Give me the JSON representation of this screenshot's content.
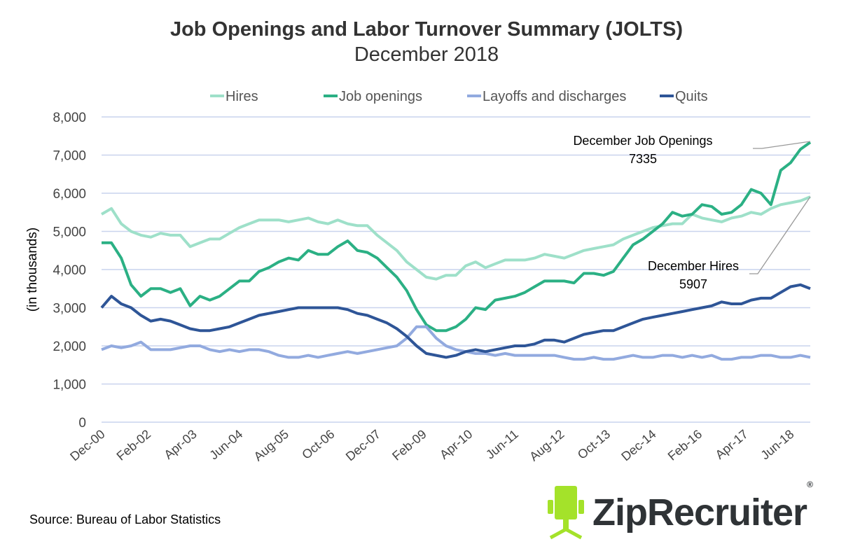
{
  "chart_data": {
    "type": "line",
    "title": "Job Openings and Labor Turnover Summary (JOLTS)",
    "subtitle": "December 2018",
    "ylabel": "(in thousands)",
    "xlabel": "",
    "ylim": [
      0,
      8000
    ],
    "yticks": [
      "0",
      "1,000",
      "2,000",
      "3,000",
      "4,000",
      "5,000",
      "6,000",
      "7,000",
      "8,000"
    ],
    "xticks": [
      "Dec-00",
      "Feb-02",
      "Apr-03",
      "Jun-04",
      "Aug-05",
      "Oct-06",
      "Dec-07",
      "Feb-09",
      "Apr-10",
      "Jun-11",
      "Aug-12",
      "Oct-13",
      "Dec-14",
      "Feb-16",
      "Apr-17",
      "Jun-18"
    ],
    "grid": true,
    "legend_position": "top",
    "x": [
      "2000-12",
      "2001-03",
      "2001-06",
      "2001-09",
      "2001-12",
      "2002-03",
      "2002-06",
      "2002-09",
      "2002-12",
      "2003-03",
      "2003-06",
      "2003-09",
      "2003-12",
      "2004-03",
      "2004-06",
      "2004-09",
      "2004-12",
      "2005-03",
      "2005-06",
      "2005-09",
      "2005-12",
      "2006-03",
      "2006-06",
      "2006-09",
      "2006-12",
      "2007-03",
      "2007-06",
      "2007-09",
      "2007-12",
      "2008-03",
      "2008-06",
      "2008-09",
      "2008-12",
      "2009-03",
      "2009-06",
      "2009-09",
      "2009-12",
      "2010-03",
      "2010-06",
      "2010-09",
      "2010-12",
      "2011-03",
      "2011-06",
      "2011-09",
      "2011-12",
      "2012-03",
      "2012-06",
      "2012-09",
      "2012-12",
      "2013-03",
      "2013-06",
      "2013-09",
      "2013-12",
      "2014-03",
      "2014-06",
      "2014-09",
      "2014-12",
      "2015-03",
      "2015-06",
      "2015-09",
      "2015-12",
      "2016-03",
      "2016-06",
      "2016-09",
      "2016-12",
      "2017-03",
      "2017-06",
      "2017-09",
      "2017-12",
      "2018-03",
      "2018-06",
      "2018-09",
      "2018-12"
    ],
    "series": [
      {
        "name": "Hires",
        "color": "#9ee0c9",
        "values": [
          5450,
          5600,
          5200,
          5000,
          4900,
          4850,
          4950,
          4900,
          4900,
          4600,
          4700,
          4800,
          4800,
          4950,
          5100,
          5200,
          5300,
          5300,
          5300,
          5250,
          5300,
          5350,
          5250,
          5200,
          5300,
          5200,
          5150,
          5150,
          4900,
          4700,
          4500,
          4200,
          4000,
          3800,
          3750,
          3850,
          3850,
          4100,
          4200,
          4050,
          4150,
          4250,
          4250,
          4250,
          4300,
          4400,
          4350,
          4300,
          4400,
          4500,
          4550,
          4600,
          4650,
          4800,
          4900,
          5000,
          5100,
          5150,
          5200,
          5200,
          5450,
          5350,
          5300,
          5250,
          5350,
          5400,
          5500,
          5450,
          5600,
          5700,
          5750,
          5800,
          5907
        ]
      },
      {
        "name": "Job openings",
        "color": "#2bb084",
        "values": [
          4700,
          4700,
          4300,
          3600,
          3300,
          3500,
          3500,
          3400,
          3500,
          3050,
          3300,
          3200,
          3300,
          3500,
          3700,
          3700,
          3950,
          4050,
          4200,
          4300,
          4250,
          4500,
          4400,
          4400,
          4600,
          4750,
          4500,
          4450,
          4300,
          4050,
          3800,
          3450,
          2950,
          2550,
          2400,
          2400,
          2500,
          2700,
          3000,
          2950,
          3200,
          3250,
          3300,
          3400,
          3550,
          3700,
          3700,
          3700,
          3650,
          3900,
          3900,
          3850,
          3950,
          4300,
          4650,
          4800,
          5000,
          5200,
          5500,
          5400,
          5450,
          5700,
          5650,
          5450,
          5500,
          5700,
          6100,
          6000,
          5700,
          6600,
          6800,
          7150,
          7335
        ]
      },
      {
        "name": "Layoffs and discharges",
        "color": "#92aadf",
        "values": [
          1900,
          2000,
          1950,
          2000,
          2100,
          1900,
          1900,
          1900,
          1950,
          2000,
          2000,
          1900,
          1850,
          1900,
          1850,
          1900,
          1900,
          1850,
          1750,
          1700,
          1700,
          1750,
          1700,
          1750,
          1800,
          1850,
          1800,
          1850,
          1900,
          1950,
          2000,
          2200,
          2500,
          2500,
          2200,
          2000,
          1900,
          1850,
          1800,
          1800,
          1750,
          1800,
          1750,
          1750,
          1750,
          1750,
          1750,
          1700,
          1650,
          1650,
          1700,
          1650,
          1650,
          1700,
          1750,
          1700,
          1700,
          1750,
          1750,
          1700,
          1750,
          1700,
          1750,
          1650,
          1650,
          1700,
          1700,
          1750,
          1750,
          1700,
          1700,
          1750,
          1700
        ]
      },
      {
        "name": "Quits",
        "color": "#2e5597",
        "values": [
          3000,
          3300,
          3100,
          3000,
          2800,
          2650,
          2700,
          2650,
          2550,
          2450,
          2400,
          2400,
          2450,
          2500,
          2600,
          2700,
          2800,
          2850,
          2900,
          2950,
          3000,
          3000,
          3000,
          3000,
          3000,
          2950,
          2850,
          2800,
          2700,
          2600,
          2450,
          2250,
          2000,
          1800,
          1750,
          1700,
          1750,
          1850,
          1900,
          1850,
          1900,
          1950,
          2000,
          2000,
          2050,
          2150,
          2150,
          2100,
          2200,
          2300,
          2350,
          2400,
          2400,
          2500,
          2600,
          2700,
          2750,
          2800,
          2850,
          2900,
          2950,
          3000,
          3050,
          3150,
          3100,
          3100,
          3200,
          3250,
          3250,
          3400,
          3550,
          3600,
          3500
        ]
      }
    ],
    "annotations": [
      {
        "label": "December Job Openings",
        "value": "7335"
      },
      {
        "label": "December Hires",
        "value": "5907"
      }
    ]
  },
  "source": "Source: Bureau of Labor Statistics",
  "logo": {
    "text": "ZipRecruiter",
    "mark": "®",
    "color": "#a4e22a"
  }
}
